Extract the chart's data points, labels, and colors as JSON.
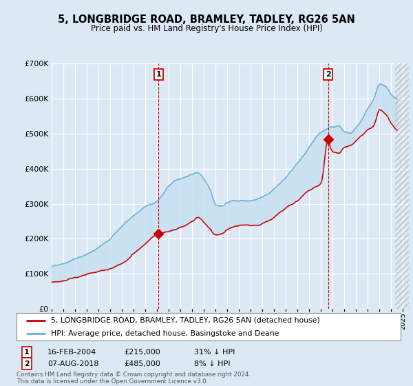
{
  "title": "5, LONGBRIDGE ROAD, BRAMLEY, TADLEY, RG26 5AN",
  "subtitle": "Price paid vs. HM Land Registry's House Price Index (HPI)",
  "legend_line1": "5, LONGBRIDGE ROAD, BRAMLEY, TADLEY, RG26 5AN (detached house)",
  "legend_line2": "HPI: Average price, detached house, Basingstoke and Deane",
  "annotation1_date": "16-FEB-2004",
  "annotation1_price": "£215,000",
  "annotation1_hpi": "31% ↓ HPI",
  "annotation1_year": 2004.12,
  "annotation1_value": 215000,
  "annotation2_date": "07-AUG-2018",
  "annotation2_price": "£485,000",
  "annotation2_hpi": "8% ↓ HPI",
  "annotation2_year": 2018.6,
  "annotation2_value": 485000,
  "footer1": "Contains HM Land Registry data © Crown copyright and database right 2024.",
  "footer2": "This data is licensed under the Open Government Licence v3.0.",
  "hpi_color": "#6ab0d4",
  "price_color": "#cc0000",
  "background_color": "#dce9f5",
  "fill_color": "#c5dff0",
  "ylim": [
    0,
    700000
  ],
  "yticks": [
    0,
    100000,
    200000,
    300000,
    400000,
    500000,
    600000,
    700000
  ],
  "xlim_start": 1995,
  "xlim_end": 2025.5
}
